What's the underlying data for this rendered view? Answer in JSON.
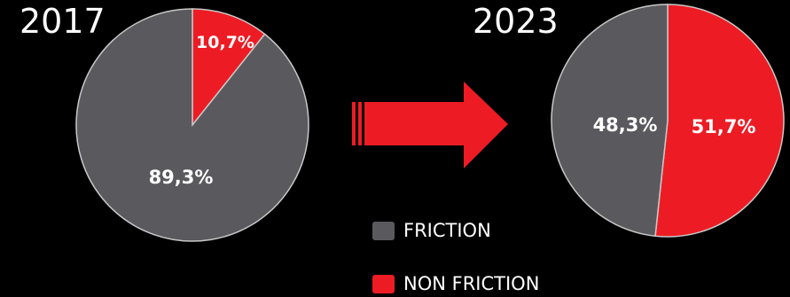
{
  "chart_data": [
    {
      "type": "pie",
      "title": "2017",
      "categories": [
        "FRICTION",
        "NON FRICTION"
      ],
      "values": [
        89.3,
        10.7
      ],
      "labels": [
        "89,3%",
        "10,7%"
      ],
      "colors": [
        "#5a5a5e",
        "#ed1c24"
      ]
    },
    {
      "type": "pie",
      "title": "2023",
      "categories": [
        "FRICTION",
        "NON FRICTION"
      ],
      "values": [
        48.3,
        51.7
      ],
      "labels": [
        "48,3%",
        "51,7%"
      ],
      "colors": [
        "#5a5a5e",
        "#ed1c24"
      ]
    }
  ],
  "legend": {
    "items": [
      {
        "label": "FRICTION",
        "color": "#5a5a5e"
      },
      {
        "label": "NON FRICTION",
        "color": "#ed1c24"
      }
    ]
  },
  "arrow": {
    "color": "#ed1c24",
    "icon": "right-arrow-icon"
  }
}
